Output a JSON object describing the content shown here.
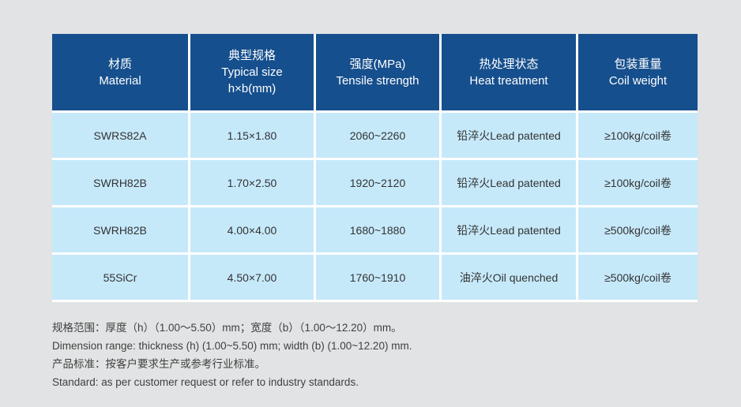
{
  "colors": {
    "page_bg": "#e2e3e4",
    "header_bg": "#164f8d",
    "header_text": "#ffffff",
    "row_bg": "#c6e9fa",
    "cell_text": "#333333",
    "grid_line": "#ffffff"
  },
  "table": {
    "headers": [
      {
        "text": "材质\nMaterial"
      },
      {
        "text": "典型规格\nTypical size\nh×b(mm)"
      },
      {
        "text": "强度(MPa)\nTensile strength"
      },
      {
        "text": "热处理状态\nHeat treatment"
      },
      {
        "text": "包装重量\nCoil weight"
      }
    ],
    "rows": [
      {
        "material": "SWRS82A",
        "typical_size": "1.15×1.80",
        "tensile_strength": "2060~2260",
        "heat_treatment": "铅淬火Lead patented",
        "coil_weight": "≥100kg/coil卷"
      },
      {
        "material": "SWRH82B",
        "typical_size": "1.70×2.50",
        "tensile_strength": "1920~2120",
        "heat_treatment": "铅淬火Lead patented",
        "coil_weight": "≥100kg/coil卷"
      },
      {
        "material": "SWRH82B",
        "typical_size": "4.00×4.00",
        "tensile_strength": "1680~1880",
        "heat_treatment": "铅淬火Lead patented",
        "coil_weight": "≥500kg/coil卷"
      },
      {
        "material": "55SiCr",
        "typical_size": "4.50×7.00",
        "tensile_strength": "1760~1910",
        "heat_treatment": "油淬火Oil quenched",
        "coil_weight": "≥500kg/coil卷"
      }
    ]
  },
  "notes": {
    "line1": "规格范围：厚度（h）（1.00～5.50）mm；宽度（b）（1.00～12.20）mm。",
    "line2": "Dimension range: thickness (h) (1.00~5.50) mm; width (b) (1.00~12.20) mm.",
    "line3": "产品标准：按客户要求生产或参考行业标准。",
    "line4": "Standard: as per customer request or refer to industry standards."
  }
}
